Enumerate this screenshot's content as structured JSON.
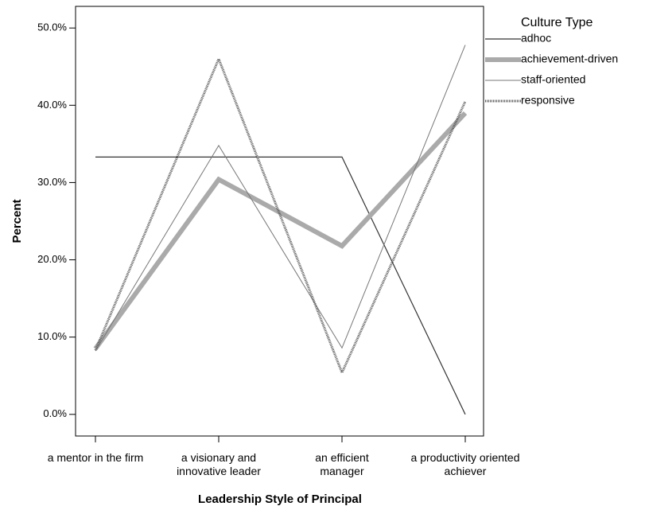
{
  "chart_data": {
    "type": "line",
    "x_label": "Leadership Style of Principal",
    "y_label": "Percent",
    "legend_title": "Culture Type",
    "legend": "right",
    "grid": false,
    "categories": [
      "a mentor in the firm",
      "a visionary and innovative leader",
      "an efficient manager",
      "a productivity oriented achiever"
    ],
    "series": [
      {
        "name": "adhoc",
        "color": "#333333",
        "values": [
          33.3,
          33.3,
          33.3,
          0
        ]
      },
      {
        "name": "achievement-driven",
        "color": "#aaaaaa",
        "values": [
          8.5,
          30.4,
          21.8,
          39.0
        ]
      },
      {
        "name": "staff-oriented",
        "color": "#777777",
        "values": [
          8.2,
          34.8,
          8.6,
          47.8
        ]
      },
      {
        "name": "responsive",
        "color": "#555555",
        "values": [
          8.3,
          46.0,
          5.4,
          40.5
        ]
      }
    ],
    "ylim": [
      -2.8,
      52.8
    ],
    "yticks": [
      {
        "value": 0,
        "label": "0.0%"
      },
      {
        "value": 10,
        "label": "10.0%"
      },
      {
        "value": 20,
        "label": "20.0%"
      },
      {
        "value": 30,
        "label": "30.0%"
      },
      {
        "value": 40,
        "label": "40.0%"
      },
      {
        "value": 50,
        "label": "50.0%"
      }
    ]
  }
}
